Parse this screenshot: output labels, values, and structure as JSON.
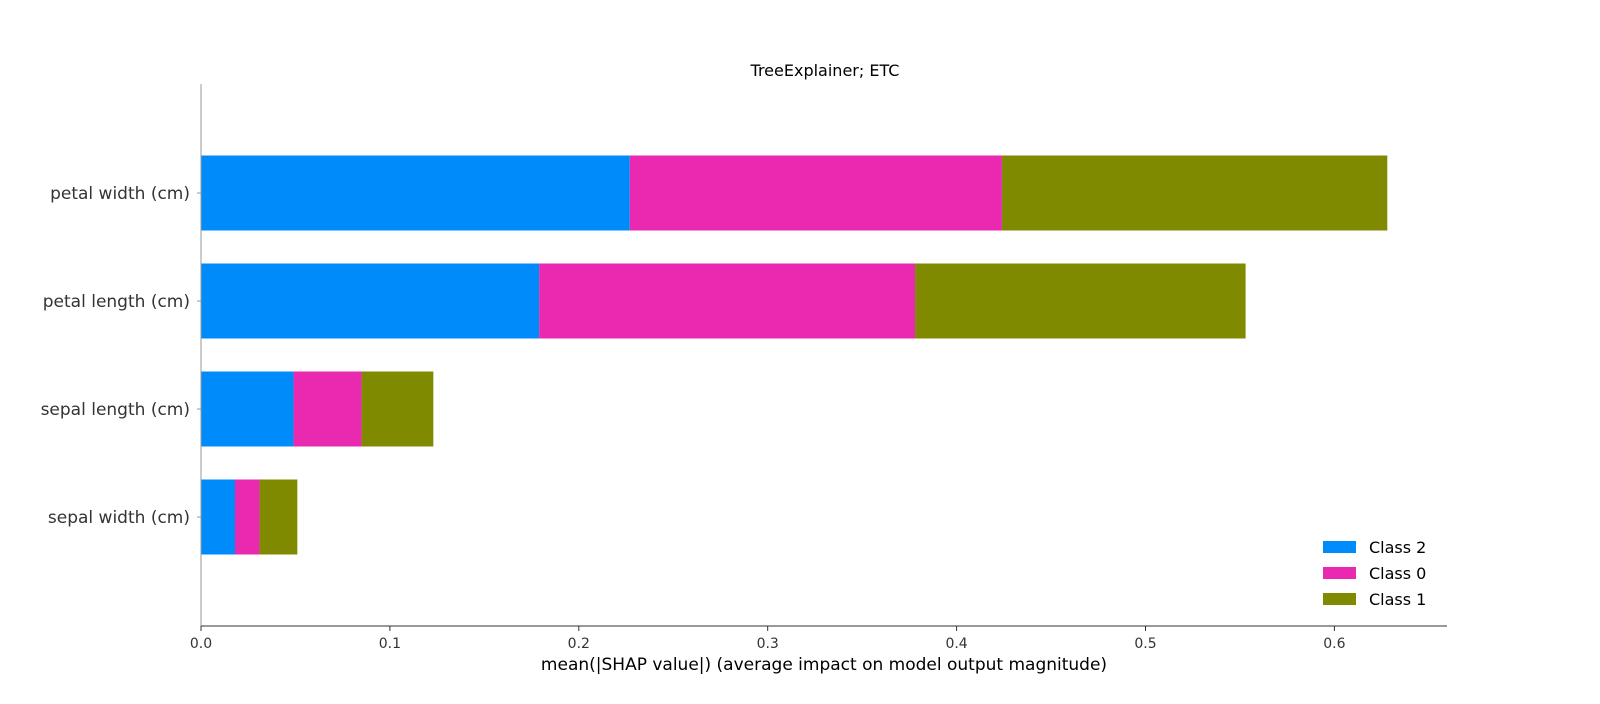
{
  "chart_data": {
    "type": "bar",
    "orientation": "horizontal",
    "stacked": true,
    "title": "TreeExplainer; ETC",
    "xlabel": "mean(|SHAP value|) (average impact on model output magnitude)",
    "ylabel": "",
    "xlim": [
      0,
      0.66
    ],
    "xticks": [
      "0.0",
      "0.1",
      "0.2",
      "0.3",
      "0.4",
      "0.5",
      "0.6"
    ],
    "grid": false,
    "legend_position": "lower-right",
    "categories": [
      "petal width (cm)",
      "petal length (cm)",
      "sepal length (cm)",
      "sepal width (cm)"
    ],
    "series": [
      {
        "name": "Class 2",
        "color": "#008bfb",
        "values": [
          0.227,
          0.179,
          0.049,
          0.018
        ]
      },
      {
        "name": "Class 0",
        "color": "#e929b0",
        "values": [
          0.197,
          0.199,
          0.036,
          0.013
        ]
      },
      {
        "name": "Class 1",
        "color": "#808a00",
        "values": [
          0.204,
          0.175,
          0.038,
          0.02
        ]
      }
    ]
  }
}
